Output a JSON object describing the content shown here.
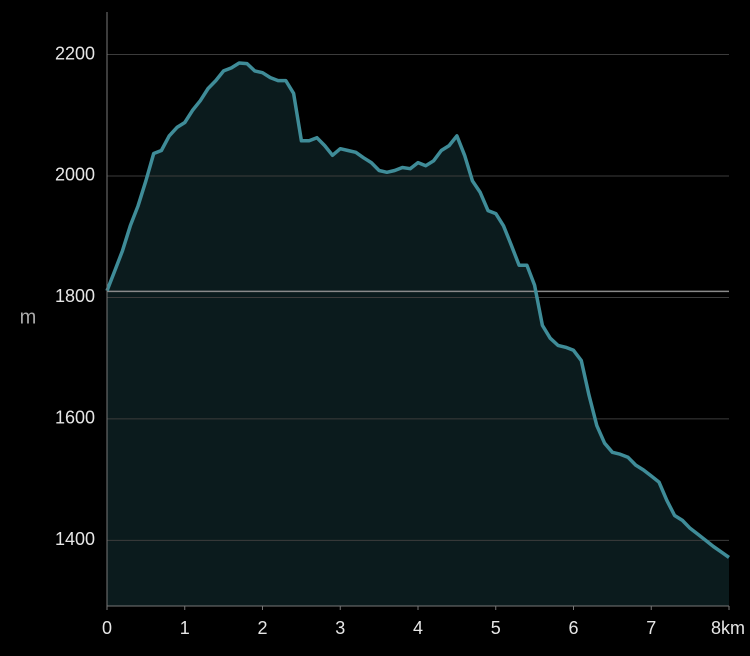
{
  "chart_data": {
    "type": "area",
    "y_label": "m",
    "x": [
      0,
      0.1,
      0.2,
      0.3,
      0.4,
      0.5,
      0.6,
      0.7,
      0.8,
      0.9,
      1.0,
      1.1,
      1.2,
      1.3,
      1.4,
      1.5,
      1.6,
      1.7,
      1.8,
      1.9,
      2.0,
      2.1,
      2.2,
      2.3,
      2.4,
      2.5,
      2.6,
      2.7,
      2.8,
      2.9,
      3.0,
      3.1,
      3.2,
      3.3,
      3.4,
      3.5,
      3.6,
      3.7,
      3.8,
      3.9,
      4.0,
      4.1,
      4.2,
      4.3,
      4.4,
      4.5,
      4.6,
      4.7,
      4.8,
      4.9,
      5.0,
      5.1,
      5.2,
      5.3,
      5.4,
      5.5,
      5.6,
      5.7,
      5.8,
      5.9,
      6.0,
      6.1,
      6.2,
      6.3,
      6.4,
      6.5,
      6.6,
      6.7,
      6.8,
      6.9,
      7.0,
      7.1,
      7.2,
      7.3,
      7.4,
      7.5,
      7.6,
      7.7,
      7.8,
      7.9,
      8.0
    ],
    "values": [
      1811,
      1844,
      1877,
      1918,
      1951,
      1992,
      2037,
      2042,
      2066,
      2080,
      2088,
      2108,
      2124,
      2144,
      2157,
      2173,
      2178,
      2186,
      2185,
      2173,
      2170,
      2162,
      2157,
      2157,
      2136,
      2058,
      2058,
      2063,
      2050,
      2034,
      2045,
      2042,
      2039,
      2030,
      2022,
      2009,
      2006,
      2009,
      2014,
      2012,
      2022,
      2017,
      2025,
      2042,
      2050,
      2066,
      2034,
      1992,
      1973,
      1943,
      1938,
      1918,
      1886,
      1853,
      1853,
      1820,
      1754,
      1733,
      1721,
      1718,
      1713,
      1696,
      1639,
      1589,
      1560,
      1545,
      1542,
      1537,
      1524,
      1516,
      1506,
      1496,
      1466,
      1441,
      1433,
      1420,
      1410,
      1400,
      1390,
      1381,
      1372
    ],
    "color": "#3f8c98",
    "fill_color": "#0b1b1d",
    "reference_line": 1810,
    "xlim": [
      0,
      8
    ],
    "xticks": [
      0,
      1,
      2,
      3,
      4,
      5,
      6,
      7,
      {
        "value": 8,
        "label": "8km"
      }
    ],
    "ylim": [
      1292,
      2270
    ],
    "yticks": [
      1400,
      1600,
      1800,
      2000,
      2200
    ],
    "grid": true
  }
}
